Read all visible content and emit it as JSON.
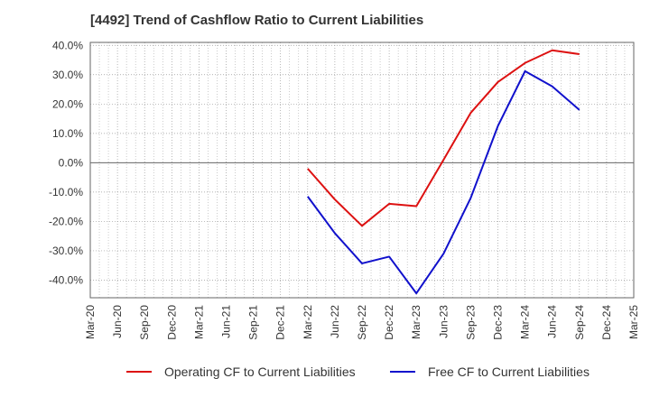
{
  "chart_data": {
    "type": "line",
    "title": "[4492]  Trend of Cashflow Ratio to Current Liabilities",
    "xlabel": "",
    "ylabel": "",
    "x": [
      "Mar-20",
      "Jun-20",
      "Sep-20",
      "Dec-20",
      "Mar-21",
      "Jun-21",
      "Sep-21",
      "Dec-21",
      "Mar-22",
      "Jun-22",
      "Sep-22",
      "Dec-22",
      "Mar-23",
      "Jun-23",
      "Sep-23",
      "Dec-23",
      "Mar-24",
      "Jun-24",
      "Sep-24",
      "Dec-24",
      "Mar-25"
    ],
    "ylim": [
      -46,
      41
    ],
    "yticks": [
      40,
      30,
      20,
      10,
      0,
      -10,
      -20,
      -30,
      -40
    ],
    "ytick_labels": [
      "40.0%",
      "30.0%",
      "20.0%",
      "10.0%",
      "0.0%",
      "-10.0%",
      "-20.0%",
      "-30.0%",
      "-40.0%"
    ],
    "grid": true,
    "legend_position": "bottom",
    "series": [
      {
        "name": "Operating CF to Current Liabilities",
        "color": "#dd1111",
        "points": [
          [
            "Mar-22",
            -2.0
          ],
          [
            "Jun-22",
            -12.5
          ],
          [
            "Sep-22",
            -21.5
          ],
          [
            "Dec-22",
            -14.0
          ],
          [
            "Mar-23",
            -14.8
          ],
          [
            "Jun-23",
            1.0
          ],
          [
            "Sep-23",
            17.0
          ],
          [
            "Dec-23",
            27.5
          ],
          [
            "Mar-24",
            34.0
          ],
          [
            "Jun-24",
            38.3
          ],
          [
            "Sep-24",
            37.0
          ]
        ]
      },
      {
        "name": "Free CF to Current Liabilities",
        "color": "#1111cc",
        "points": [
          [
            "Mar-22",
            -11.5
          ],
          [
            "Jun-22",
            -24.0
          ],
          [
            "Sep-22",
            -34.3
          ],
          [
            "Dec-22",
            -32.0
          ],
          [
            "Mar-23",
            -44.5
          ],
          [
            "Jun-23",
            -31.0
          ],
          [
            "Sep-23",
            -12.0
          ],
          [
            "Dec-23",
            12.5
          ],
          [
            "Mar-24",
            31.2
          ],
          [
            "Jun-24",
            26.0
          ],
          [
            "Sep-24",
            18.0
          ]
        ]
      }
    ]
  }
}
